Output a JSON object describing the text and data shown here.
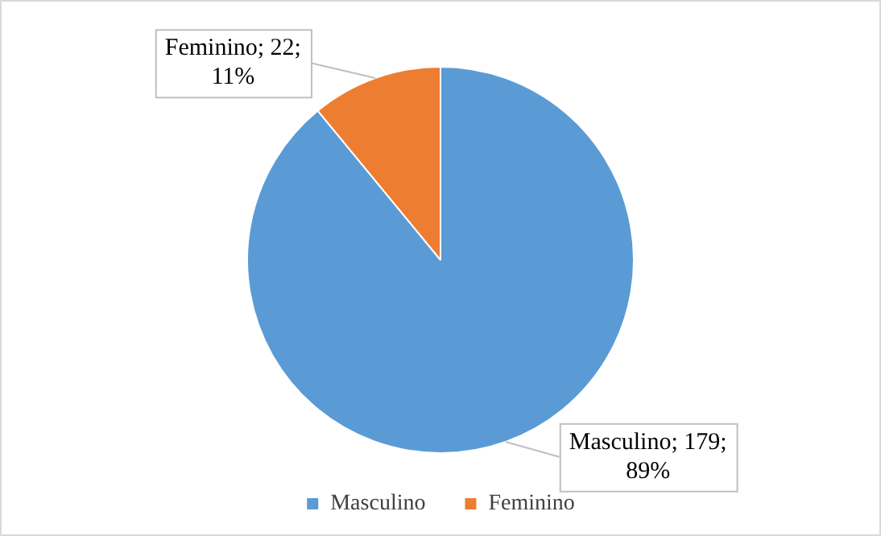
{
  "chart_data": {
    "type": "pie",
    "categories": [
      "Masculino",
      "Feminino"
    ],
    "values": [
      179,
      22
    ],
    "colors": [
      "#5b9bd5",
      "#ed7d31"
    ],
    "value_labels": [
      "Masculino; 179; 89%",
      "Feminino; 22; 11%"
    ],
    "legend": "bottom"
  }
}
